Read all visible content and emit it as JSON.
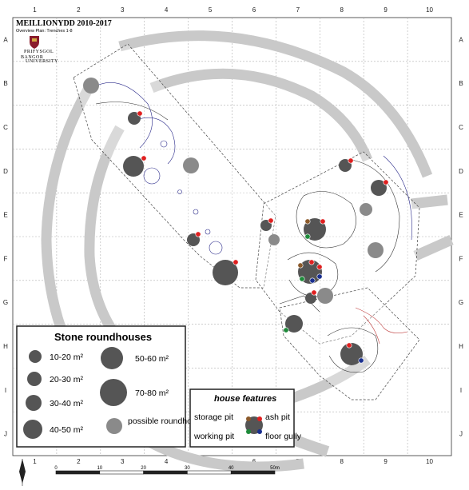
{
  "header": {
    "title": "MEILLIONYDD 2010-2017",
    "subtitle": "Overview Plan: Trenches 1-8",
    "logo_text": "BANGOR",
    "logo_subtext": "PRIFYSGOL",
    "logo_subtext2": "UNIVERSITY"
  },
  "grid": {
    "columns": [
      "1",
      "2",
      "3",
      "4",
      "5",
      "6",
      "7",
      "8",
      "9",
      "10"
    ],
    "rows": [
      "A",
      "B",
      "C",
      "D",
      "E",
      "F",
      "G",
      "H",
      "I",
      "J"
    ]
  },
  "colors": {
    "stone_roundhouse": "#555555",
    "possible_roundhouse": "#8a8a8a",
    "enclosure_bank": "#c9c9c9",
    "storage_pit": "#8b5a2b",
    "ash_pit": "#e02020",
    "working_pit": "#1e8a3a",
    "floor_gully": "#1a2f8f"
  },
  "legend": {
    "title": "Stone roundhouses",
    "sizes": [
      "10-20 m²",
      "20-30 m²",
      "30-40 m²",
      "40-50 m²",
      "50-60 m²",
      "70-80 m²"
    ],
    "possible_label": "possible roundhouse"
  },
  "features": {
    "title": "house features",
    "storage_pit": "storage pit",
    "ash_pit": "ash pit",
    "working_pit": "working pit",
    "floor_gully": "floor gully"
  },
  "scale": {
    "ticks": [
      "0",
      "10",
      "20",
      "30",
      "40",
      "50m"
    ],
    "north_label": "N"
  }
}
